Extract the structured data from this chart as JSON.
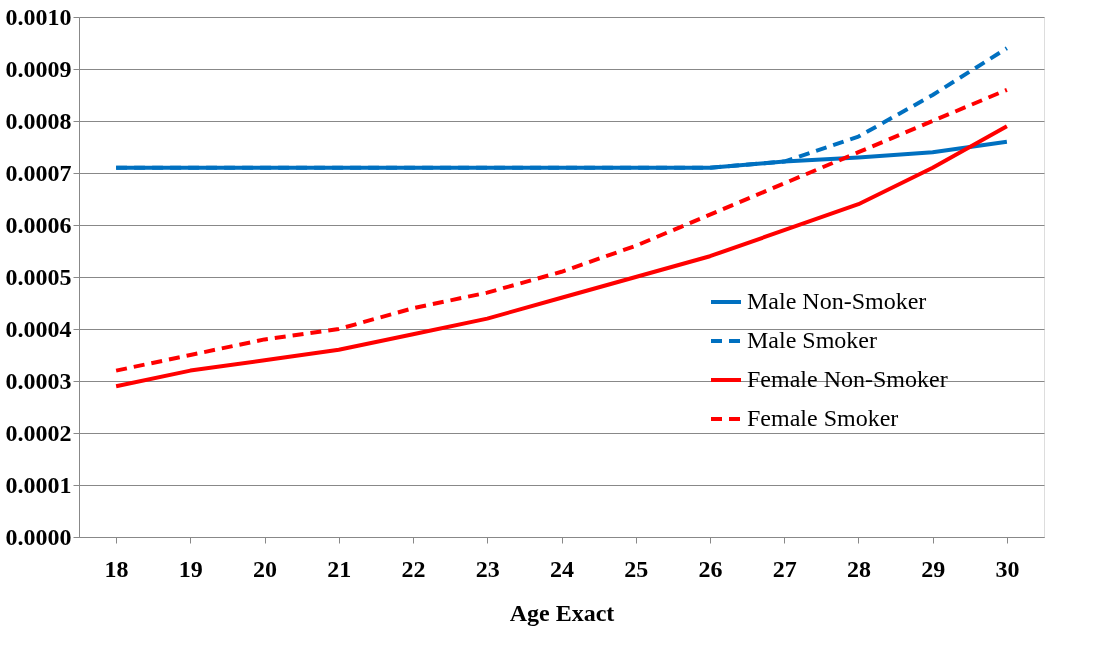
{
  "chart_data": {
    "type": "line",
    "xlabel": "Age Exact",
    "categories": [
      "18",
      "19",
      "20",
      "21",
      "22",
      "23",
      "24",
      "25",
      "26",
      "27",
      "28",
      "29",
      "30"
    ],
    "series": [
      {
        "name": "Male Non-Smoker",
        "color": "#0070c0",
        "line_style": "solid",
        "values": [
          0.00071,
          0.00071,
          0.00071,
          0.00071,
          0.00071,
          0.00071,
          0.00071,
          0.00071,
          0.00071,
          0.000722,
          0.00073,
          0.00074,
          0.00076
        ]
      },
      {
        "name": "Male Smoker",
        "color": "#0070c0",
        "line_style": "dashed",
        "values": [
          0.00071,
          0.00071,
          0.00071,
          0.00071,
          0.00071,
          0.00071,
          0.00071,
          0.00071,
          0.00071,
          0.000722,
          0.00077,
          0.00085,
          0.00094
        ]
      },
      {
        "name": "Female Non-Smoker",
        "color": "#ff0000",
        "line_style": "solid",
        "values": [
          0.00029,
          0.00032,
          0.00034,
          0.00036,
          0.00039,
          0.00042,
          0.00046,
          0.0005,
          0.00054,
          0.00059,
          0.00064,
          0.00071,
          0.00079
        ]
      },
      {
        "name": "Female Smoker",
        "color": "#ff0000",
        "line_style": "dashed",
        "values": [
          0.00032,
          0.00035,
          0.00038,
          0.0004,
          0.00044,
          0.00047,
          0.00051,
          0.00056,
          0.00062,
          0.00068,
          0.00074,
          0.0008,
          0.00086
        ]
      }
    ],
    "ylim": [
      0,
      0.001
    ],
    "yticks": [
      {
        "value": 0,
        "label": "0.0000"
      },
      {
        "value": 0.0001,
        "label": "0.0001"
      },
      {
        "value": 0.0002,
        "label": "0.0002"
      },
      {
        "value": 0.0003,
        "label": "0.0003"
      },
      {
        "value": 0.0004,
        "label": "0.0004"
      },
      {
        "value": 0.0005,
        "label": "0.0005"
      },
      {
        "value": 0.0006,
        "label": "0.0006"
      },
      {
        "value": 0.0007,
        "label": "0.0007"
      },
      {
        "value": 0.0008,
        "label": "0.0008"
      },
      {
        "value": 0.0009,
        "label": "0.0009"
      },
      {
        "value": 0.001,
        "label": "0.0010"
      }
    ],
    "grid": "y",
    "legend": "right",
    "marker": "none"
  }
}
